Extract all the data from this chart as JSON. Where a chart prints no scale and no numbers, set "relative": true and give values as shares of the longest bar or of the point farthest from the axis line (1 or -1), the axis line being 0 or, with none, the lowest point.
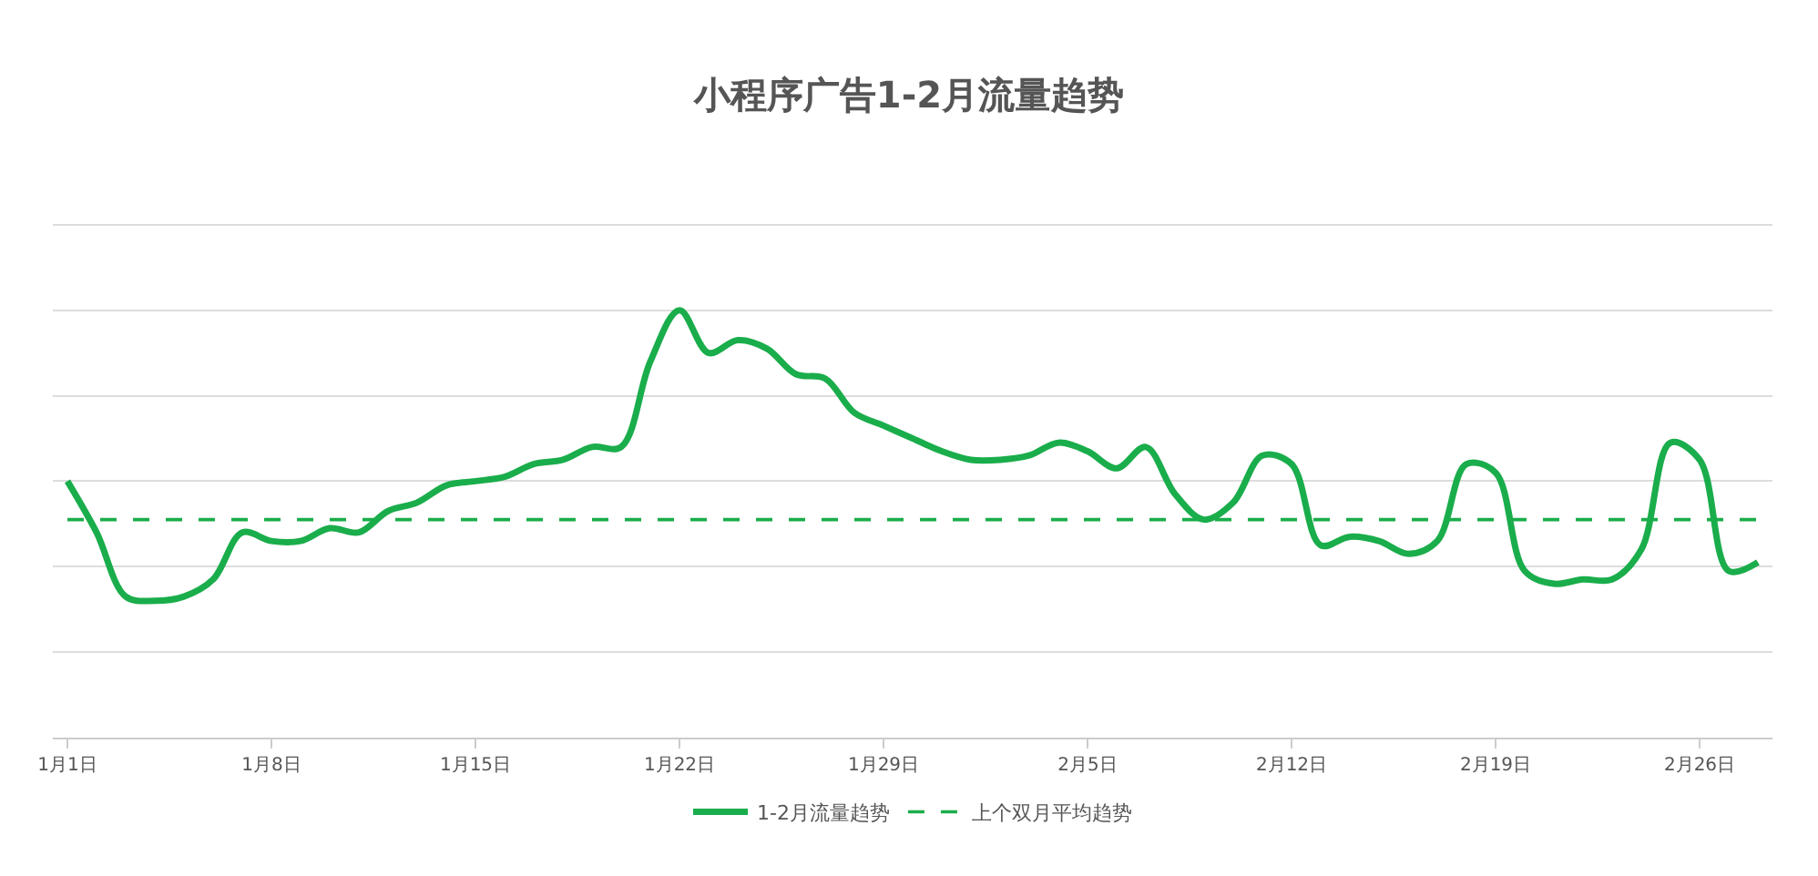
{
  "chart_data": {
    "type": "line",
    "title": "小程序广告1-2月流量趋势",
    "categories": [
      "1月1日",
      null,
      null,
      null,
      null,
      null,
      null,
      "1月8日",
      null,
      null,
      null,
      null,
      null,
      null,
      "1月15日",
      null,
      null,
      null,
      null,
      null,
      null,
      "1月22日",
      null,
      null,
      null,
      null,
      null,
      null,
      "1月29日",
      null,
      null,
      null,
      null,
      null,
      null,
      "2月5日",
      null,
      null,
      null,
      null,
      null,
      null,
      "2月12日",
      null,
      null,
      null,
      null,
      null,
      null,
      "2月19日",
      null,
      null,
      null,
      null,
      null,
      null,
      "2月26日",
      null,
      null
    ],
    "relative": true,
    "series": [
      {
        "name": "1-2月流量趋势",
        "color": "#1aad4b",
        "values": [
          0.6,
          0.48,
          0.33,
          0.32,
          0.33,
          0.37,
          0.48,
          0.46,
          0.46,
          0.49,
          0.48,
          0.53,
          0.55,
          0.59,
          0.6,
          0.61,
          0.64,
          0.65,
          0.68,
          0.68,
          0.88,
          1,
          0.9,
          0.93,
          0.91,
          0.85,
          0.84,
          0.76,
          0.73,
          0.7,
          0.67,
          0.65,
          0.65,
          0.66,
          0.69,
          0.67,
          0.63,
          0.68,
          0.57,
          0.51,
          0.55,
          0.66,
          0.64,
          0.45,
          0.47,
          0.46,
          0.43,
          0.46,
          0.64,
          0.62,
          0.39,
          0.36,
          0.37,
          0.37,
          0.44,
          0.69,
          0.65,
          0.39,
          0.41
        ]
      }
    ],
    "ref_lines": [
      {
        "axis": "y",
        "value": 0.51,
        "label": "上个双月平均趋势",
        "color": "#1aad4b",
        "line_style": "dashed"
      }
    ],
    "grid": "y",
    "legend": "bottom",
    "marker": "none",
    "line_style": "solid"
  }
}
